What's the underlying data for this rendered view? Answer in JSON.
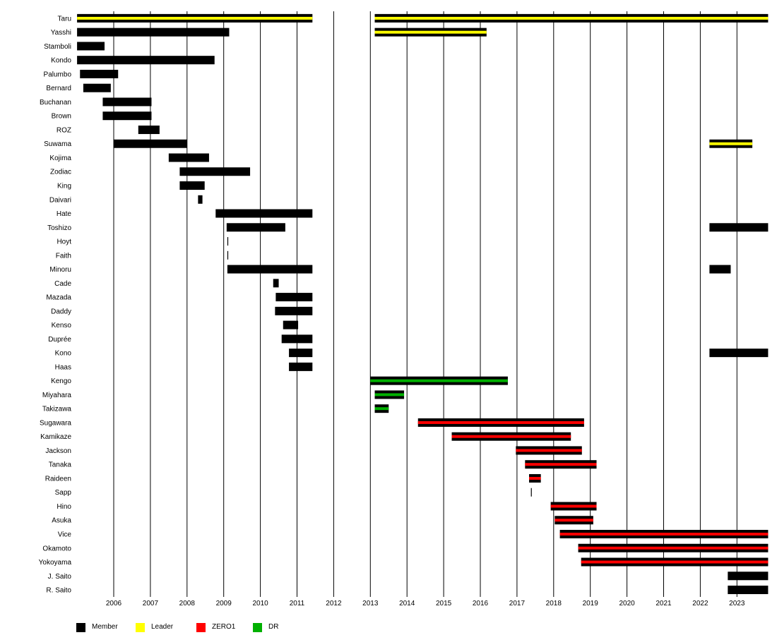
{
  "chart_data": {
    "type": "timeline",
    "title": "",
    "xlabel": "",
    "ylabel": "",
    "xlim": [
      2005.0,
      2023.85
    ],
    "x_ticks": [
      "2006",
      "2007",
      "2008",
      "2009",
      "2010",
      "2011",
      "2012",
      "2013",
      "2014",
      "2015",
      "2016",
      "2017",
      "2018",
      "2019",
      "2020",
      "2021",
      "2022",
      "2023"
    ],
    "grid": "vertical year lines",
    "legend_position": "bottom-left",
    "colors": {
      "Member": "#000000",
      "Leader": "#ffff00",
      "ZERO1": "#ff0000",
      "DR": "#00b000"
    },
    "legend": [
      {
        "label": "Member",
        "color": "#000000"
      },
      {
        "label": "Leader",
        "color": "#ffff00"
      },
      {
        "label": "ZERO1",
        "color": "#ff0000"
      },
      {
        "label": "DR",
        "color": "#00b000"
      }
    ],
    "members": [
      {
        "name": "Taru",
        "periods": [
          [
            2005.0,
            2011.42,
            "Leader"
          ],
          [
            2013.12,
            2023.85,
            "Leader"
          ]
        ]
      },
      {
        "name": "Yasshi",
        "periods": [
          [
            2005.0,
            2009.15,
            "Member"
          ],
          [
            2013.12,
            2016.17,
            "Leader"
          ]
        ]
      },
      {
        "name": "Stamboli",
        "periods": [
          [
            2005.0,
            2005.75,
            "Member"
          ]
        ]
      },
      {
        "name": "Kondo",
        "periods": [
          [
            2005.0,
            2008.75,
            "Member"
          ]
        ]
      },
      {
        "name": "Palumbo",
        "periods": [
          [
            2005.08,
            2006.12,
            "Member"
          ]
        ]
      },
      {
        "name": "Bernard",
        "periods": [
          [
            2005.17,
            2005.92,
            "Member"
          ]
        ]
      },
      {
        "name": "Buchanan",
        "periods": [
          [
            2005.7,
            2007.03,
            "Member"
          ]
        ]
      },
      {
        "name": "Brown",
        "periods": [
          [
            2005.7,
            2007.03,
            "Member"
          ]
        ]
      },
      {
        "name": "ROZ",
        "periods": [
          [
            2006.67,
            2007.25,
            "Member"
          ]
        ]
      },
      {
        "name": "Suwama",
        "periods": [
          [
            2006.0,
            2008.0,
            "Member"
          ],
          [
            2022.25,
            2023.42,
            "Leader"
          ]
        ]
      },
      {
        "name": "Kojima",
        "periods": [
          [
            2007.5,
            2008.6,
            "Member"
          ]
        ]
      },
      {
        "name": "Zodiac",
        "periods": [
          [
            2007.8,
            2009.72,
            "Member"
          ]
        ]
      },
      {
        "name": "King",
        "periods": [
          [
            2007.8,
            2008.48,
            "Member"
          ]
        ]
      },
      {
        "name": "Daivari",
        "periods": [
          [
            2008.3,
            2008.42,
            "Member"
          ]
        ]
      },
      {
        "name": "Hate",
        "periods": [
          [
            2008.78,
            2011.42,
            "Member"
          ]
        ]
      },
      {
        "name": "Toshizo",
        "periods": [
          [
            2009.08,
            2010.68,
            "Member"
          ],
          [
            2022.25,
            2023.85,
            "Member"
          ]
        ]
      },
      {
        "name": "Hoyt",
        "periods": [
          [
            2009.1,
            2009.12,
            "Member"
          ]
        ]
      },
      {
        "name": "Faith",
        "periods": [
          [
            2009.1,
            2009.12,
            "Member"
          ]
        ]
      },
      {
        "name": "Minoru",
        "periods": [
          [
            2009.1,
            2011.42,
            "Member"
          ],
          [
            2022.25,
            2022.83,
            "Member"
          ]
        ]
      },
      {
        "name": "Cade",
        "periods": [
          [
            2010.35,
            2010.5,
            "Member"
          ]
        ]
      },
      {
        "name": "Mazada",
        "periods": [
          [
            2010.42,
            2011.42,
            "Member"
          ]
        ]
      },
      {
        "name": "Daddy",
        "periods": [
          [
            2010.4,
            2011.42,
            "Member"
          ]
        ]
      },
      {
        "name": "Kenso",
        "periods": [
          [
            2010.62,
            2011.03,
            "Member"
          ]
        ]
      },
      {
        "name": "Duprée",
        "periods": [
          [
            2010.58,
            2011.42,
            "Member"
          ]
        ]
      },
      {
        "name": "Kono",
        "periods": [
          [
            2010.78,
            2011.42,
            "Member"
          ],
          [
            2022.25,
            2023.85,
            "Member"
          ]
        ]
      },
      {
        "name": "Haas",
        "periods": [
          [
            2010.78,
            2011.42,
            "Member"
          ]
        ]
      },
      {
        "name": "Kengo",
        "periods": [
          [
            2013.0,
            2016.75,
            "DR"
          ]
        ]
      },
      {
        "name": "Miyahara",
        "periods": [
          [
            2013.12,
            2013.92,
            "DR"
          ]
        ]
      },
      {
        "name": "Takizawa",
        "periods": [
          [
            2013.12,
            2013.5,
            "DR"
          ]
        ]
      },
      {
        "name": "Sugawara",
        "periods": [
          [
            2014.3,
            2018.83,
            "ZERO1"
          ]
        ]
      },
      {
        "name": "Kamikaze",
        "periods": [
          [
            2015.22,
            2018.47,
            "ZERO1"
          ]
        ]
      },
      {
        "name": "Jackson",
        "periods": [
          [
            2016.97,
            2018.77,
            "ZERO1"
          ]
        ]
      },
      {
        "name": "Tanaka",
        "periods": [
          [
            2017.22,
            2019.17,
            "ZERO1"
          ]
        ]
      },
      {
        "name": "Raideen",
        "periods": [
          [
            2017.33,
            2017.65,
            "ZERO1"
          ]
        ]
      },
      {
        "name": "Sapp",
        "periods": [
          [
            2017.38,
            2017.4,
            "Member"
          ]
        ]
      },
      {
        "name": "Hino",
        "periods": [
          [
            2017.92,
            2019.17,
            "ZERO1"
          ]
        ]
      },
      {
        "name": "Asuka",
        "periods": [
          [
            2018.03,
            2019.08,
            "ZERO1"
          ]
        ]
      },
      {
        "name": "Vice",
        "periods": [
          [
            2018.17,
            2023.85,
            "ZERO1"
          ]
        ]
      },
      {
        "name": "Okamoto",
        "periods": [
          [
            2018.67,
            2023.85,
            "ZERO1"
          ]
        ]
      },
      {
        "name": "Yokoyama",
        "periods": [
          [
            2018.75,
            2023.85,
            "ZERO1"
          ]
        ]
      },
      {
        "name": "J. Saito",
        "periods": [
          [
            2022.75,
            2023.85,
            "Member"
          ]
        ]
      },
      {
        "name": "R. Saito",
        "periods": [
          [
            2022.75,
            2023.85,
            "Member"
          ]
        ]
      }
    ]
  }
}
